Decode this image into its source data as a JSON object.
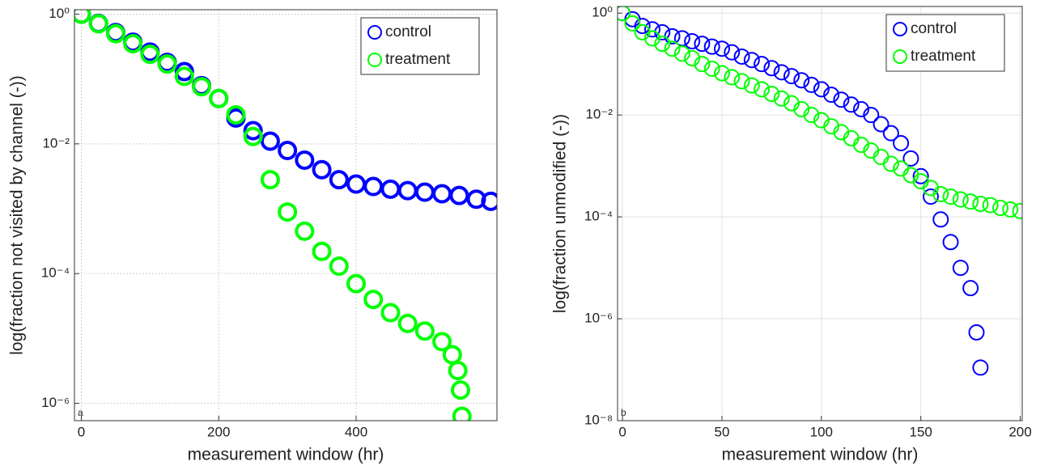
{
  "chart_data": [
    {
      "type": "scatter",
      "xlabel": "measurement window (hr)",
      "ylabel": "log(fraction not visited by channel (-))",
      "annotation": "a",
      "yscale": "log",
      "grid": true,
      "legend": "upper right",
      "xlim": [
        -10,
        605
      ],
      "xticks": [
        0,
        200,
        400
      ],
      "ylim": [
        5.4e-07,
        1.17
      ],
      "yticks": [
        {
          "value": 1,
          "label": "10⁰"
        },
        {
          "value": 0.01,
          "label": "10⁻²"
        },
        {
          "value": 0.0001,
          "label": "10⁻⁴"
        },
        {
          "value": 1e-06,
          "label": "10⁻⁶"
        }
      ],
      "series": [
        {
          "name": "control",
          "color": "#0000ff",
          "x": [
            0,
            25,
            50,
            75,
            100,
            125,
            150,
            175,
            200,
            225,
            250,
            275,
            300,
            325,
            350,
            375,
            400,
            425,
            450,
            475,
            500,
            525,
            550,
            575,
            596
          ],
          "values": [
            1,
            0.72,
            0.52,
            0.37,
            0.26,
            0.18,
            0.13,
            0.079,
            0.05,
            0.025,
            0.016,
            0.011,
            0.0079,
            0.0056,
            0.004,
            0.0028,
            0.0024,
            0.0022,
            0.002,
            0.0019,
            0.0018,
            0.0017,
            0.0016,
            0.0014,
            0.0013
          ]
        },
        {
          "name": "treatment",
          "color": "#00ff00",
          "x": [
            0,
            25,
            50,
            75,
            100,
            125,
            150,
            175,
            200,
            225,
            250,
            275,
            300,
            325,
            350,
            375,
            400,
            425,
            450,
            475,
            500,
            525,
            540,
            548,
            552,
            554
          ],
          "values": [
            1,
            0.71,
            0.5,
            0.35,
            0.24,
            0.17,
            0.11,
            0.076,
            0.05,
            0.028,
            0.013,
            0.0028,
            0.00089,
            0.00045,
            0.00022,
            0.00013,
            7e-05,
            4e-05,
            2.5e-05,
            1.7e-05,
            1.3e-05,
            8.9e-06,
            5.6e-06,
            3.2e-06,
            1.6e-06,
            6.3e-07
          ]
        }
      ]
    },
    {
      "type": "scatter",
      "xlabel": "measurement window (hr)",
      "ylabel": "log(fraction unmodified (-))",
      "annotation": "b",
      "yscale": "log",
      "grid": true,
      "legend": "upper right",
      "xlim": [
        -2.5,
        201
      ],
      "xticks": [
        0,
        50,
        100,
        150,
        200
      ],
      "ylim": [
        1e-08,
        1.35
      ],
      "yticks": [
        {
          "value": 1,
          "label": "10⁰"
        },
        {
          "value": 0.01,
          "label": "10⁻²"
        },
        {
          "value": 0.0001,
          "label": "10⁻⁴"
        },
        {
          "value": 1e-06,
          "label": "10⁻⁶"
        },
        {
          "value": 1e-08,
          "label": "10⁻⁸"
        }
      ],
      "series": [
        {
          "name": "control",
          "color": "#0000ff",
          "x": [
            0,
            5,
            10,
            15,
            20,
            25,
            30,
            35,
            40,
            45,
            50,
            55,
            60,
            65,
            70,
            75,
            80,
            85,
            90,
            95,
            100,
            105,
            110,
            115,
            120,
            125,
            130,
            135,
            140,
            145,
            150,
            155,
            160,
            165,
            170,
            175,
            178,
            180
          ],
          "values": [
            1,
            0.76,
            0.56,
            0.48,
            0.42,
            0.35,
            0.32,
            0.28,
            0.25,
            0.22,
            0.2,
            0.17,
            0.14,
            0.12,
            0.1,
            0.083,
            0.069,
            0.058,
            0.048,
            0.039,
            0.032,
            0.025,
            0.02,
            0.016,
            0.013,
            0.01,
            0.0066,
            0.0044,
            0.0028,
            0.0014,
            0.00063,
            0.00025,
            8.9e-05,
            3.2e-05,
            1e-05,
            4e-06,
            5.4e-07,
            1.1e-07
          ]
        },
        {
          "name": "treatment",
          "color": "#00ff00",
          "x": [
            0,
            5,
            10,
            15,
            20,
            25,
            30,
            35,
            40,
            45,
            50,
            55,
            60,
            65,
            70,
            75,
            80,
            85,
            90,
            95,
            100,
            105,
            110,
            115,
            120,
            125,
            130,
            135,
            140,
            145,
            150,
            155,
            160,
            165,
            170,
            175,
            180,
            185,
            190,
            195,
            200
          ],
          "values": [
            1,
            0.63,
            0.42,
            0.32,
            0.25,
            0.2,
            0.16,
            0.13,
            0.1,
            0.081,
            0.066,
            0.055,
            0.046,
            0.038,
            0.032,
            0.026,
            0.021,
            0.017,
            0.013,
            0.01,
            0.0079,
            0.006,
            0.0046,
            0.0035,
            0.0026,
            0.002,
            0.0015,
            0.0011,
            0.00089,
            0.00066,
            0.0005,
            0.00037,
            0.00028,
            0.00025,
            0.00022,
            0.0002,
            0.00018,
            0.00017,
            0.00015,
            0.00014,
            0.00013
          ]
        }
      ]
    }
  ]
}
